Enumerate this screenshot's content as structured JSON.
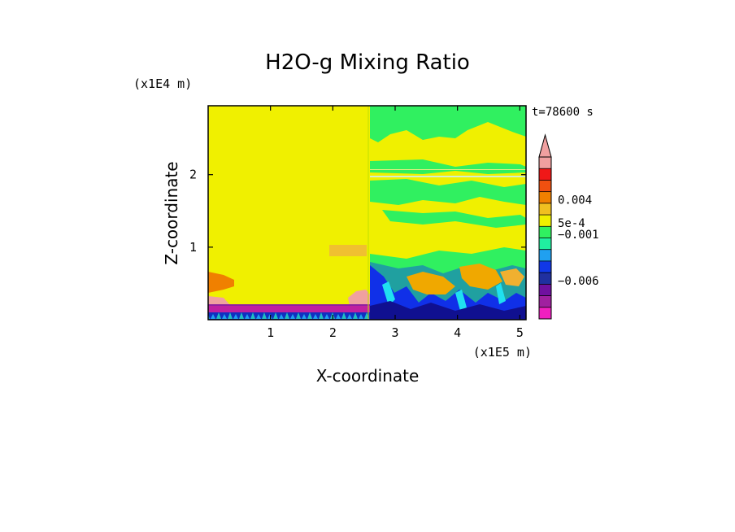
{
  "chart_data": {
    "type": "heatmap",
    "title": "H2O-g Mixing Ratio",
    "time_label": "t=78600 s",
    "xlabel": "X-coordinate",
    "ylabel": "Z-coordinate",
    "x_unit": "(x1E5 m)",
    "y_unit": "(x1E4 m)",
    "xlim": [
      0,
      5.1
    ],
    "ylim": [
      0,
      2.95
    ],
    "xticks": [
      "1",
      "2",
      "3",
      "4",
      "5"
    ],
    "xtick_values": [
      1,
      2,
      3,
      4,
      5
    ],
    "yticks": [
      "1",
      "2"
    ],
    "ytick_values": [
      1,
      2
    ],
    "colorbar": {
      "colors": [
        "#f020c0",
        "#a020a0",
        "#7010a0",
        "#2030a0",
        "#1038e8",
        "#20a0f0",
        "#20f0a0",
        "#30f060",
        "#f0f000",
        "#f0c020",
        "#f08000",
        "#f05010",
        "#f01818",
        "#f0a0a0"
      ],
      "labels": [
        "0.004",
        "5e-4",
        "−0.001",
        "−0.006"
      ],
      "extend": "max"
    },
    "field_colors": {
      "yellow": "#f0f000",
      "green": "#30f060",
      "teal": "#20a0a0",
      "cyan": "#20e0f0",
      "blue": "#1030e8",
      "navy": "#101090",
      "orange": "#f0a800",
      "light_orange": "#f0b030",
      "pink": "#f0a0a0",
      "magenta": "#c020a0",
      "purple": "#9020a0"
    }
  }
}
